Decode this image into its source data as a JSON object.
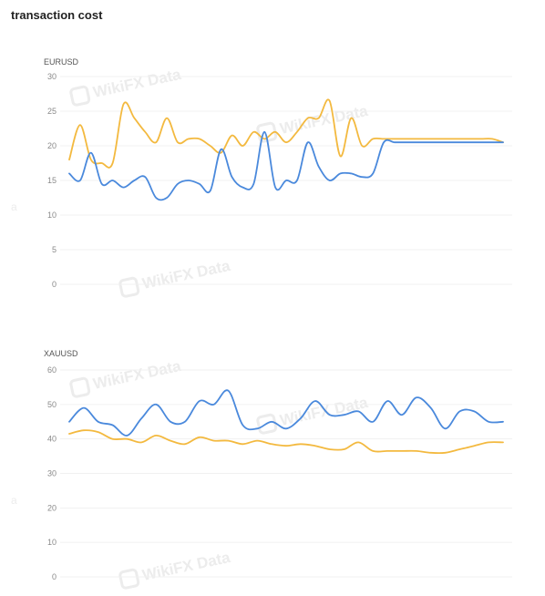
{
  "title": "transaction cost",
  "watermark": "WikiFX Data",
  "side_mark": "a",
  "colors": {
    "blue": "#4a89dc",
    "gold": "#f3b93f"
  },
  "chart_data": [
    {
      "type": "line",
      "series_label": "EURUSD",
      "ylim": [
        0,
        30
      ],
      "yticks": [
        0,
        5,
        10,
        15,
        20,
        25,
        30
      ],
      "grid": true,
      "x": [
        0,
        1,
        2,
        3,
        4,
        5,
        6,
        7,
        8,
        9,
        10,
        11,
        12,
        13,
        14,
        15,
        16,
        17,
        18,
        19,
        20,
        21,
        22,
        23,
        24,
        25,
        26,
        27,
        28,
        29,
        30,
        31,
        32,
        33,
        34,
        35,
        36,
        37,
        38,
        39,
        40
      ],
      "series": [
        {
          "color": "#f3b93f",
          "values": [
            18,
            23,
            18,
            17.5,
            17.5,
            26,
            24,
            22,
            20.5,
            24,
            20.5,
            21,
            21,
            20,
            19,
            21.5,
            20,
            22,
            21,
            22,
            20.5,
            22,
            24,
            24,
            26.5,
            18.5,
            24,
            20,
            21,
            21,
            21,
            21,
            21,
            21,
            21,
            21,
            21,
            21,
            21,
            21,
            20.5
          ]
        },
        {
          "color": "#4a89dc",
          "values": [
            16,
            15,
            19,
            14.5,
            15,
            14,
            15,
            15.5,
            12.5,
            12.5,
            14.5,
            15,
            14.5,
            13.5,
            19.5,
            15.5,
            14,
            14.5,
            22,
            14,
            15,
            15,
            20.5,
            17,
            15,
            16,
            16,
            15.5,
            16,
            20.5,
            20.5,
            20.5,
            20.5,
            20.5,
            20.5,
            20.5,
            20.5,
            20.5,
            20.5,
            20.5,
            20.5
          ]
        }
      ]
    },
    {
      "type": "line",
      "series_label": "XAUUSD",
      "ylim": [
        0,
        60
      ],
      "yticks": [
        0,
        10,
        20,
        30,
        40,
        50,
        60
      ],
      "grid": true,
      "x": [
        0,
        1,
        2,
        3,
        4,
        5,
        6,
        7,
        8,
        9,
        10,
        11,
        12,
        13,
        14,
        15,
        16,
        17,
        18,
        19,
        20,
        21,
        22,
        23,
        24,
        25,
        26,
        27,
        28,
        29,
        30
      ],
      "series": [
        {
          "color": "#4a89dc",
          "values": [
            45,
            49,
            45,
            44,
            41,
            46,
            50,
            45,
            45,
            51,
            50,
            54,
            44,
            43,
            45,
            43,
            46,
            51,
            47,
            47,
            48,
            45,
            51,
            47,
            52,
            49,
            43,
            48,
            48,
            45,
            45
          ]
        },
        {
          "color": "#f3b93f",
          "values": [
            41.5,
            42.5,
            42,
            40,
            40,
            39,
            41,
            39.5,
            38.5,
            40.5,
            39.5,
            39.5,
            38.5,
            39.5,
            38.5,
            38,
            38.5,
            38,
            37,
            37,
            39,
            36.5,
            36.5,
            36.5,
            36.5,
            36,
            36,
            37,
            38,
            39,
            39
          ]
        }
      ]
    }
  ]
}
